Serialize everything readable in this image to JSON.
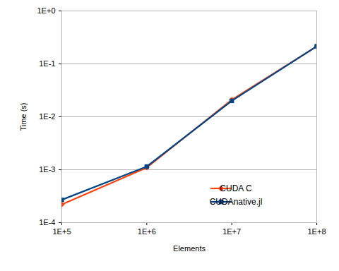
{
  "chart_data": {
    "type": "line",
    "xlabel": "Elements",
    "ylabel": "Time (s)",
    "log": true,
    "grid": "y",
    "legend": "lower right",
    "x": [
      100000,
      1000000,
      10000000,
      100000000
    ],
    "xlim": [
      100000,
      100000000
    ],
    "xticks": [
      {
        "value": 100000,
        "label": "1E+5"
      },
      {
        "value": 1000000,
        "label": "1E+6"
      },
      {
        "value": 10000000,
        "label": "1E+7"
      },
      {
        "value": 100000000,
        "label": "1E+8"
      }
    ],
    "ylim": [
      0.0001,
      1
    ],
    "yticks": [
      {
        "value": 0.0001,
        "label": "1E-4"
      },
      {
        "value": 0.001,
        "label": "1E-3"
      },
      {
        "value": 0.01,
        "label": "1E-2"
      },
      {
        "value": 0.1,
        "label": "1E-1"
      },
      {
        "value": 1,
        "label": "1E+0"
      }
    ],
    "series": [
      {
        "name": "CUDA C",
        "color": "#ff420e",
        "marker": "diamond",
        "values": [
          0.00022,
          0.0011,
          0.021,
          0.215
        ]
      },
      {
        "name": "CUDAnative.jl",
        "color": "#004586",
        "marker": "square",
        "values": [
          0.00027,
          0.00115,
          0.02,
          0.215
        ]
      }
    ]
  }
}
